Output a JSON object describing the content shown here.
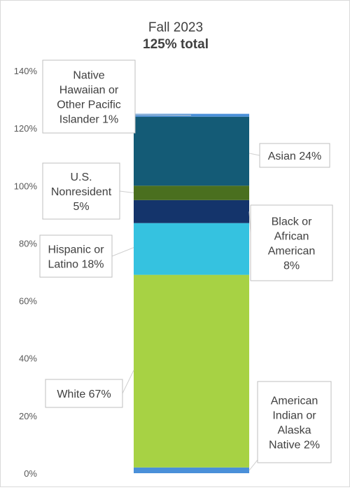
{
  "chart_data": {
    "type": "bar",
    "stacked": true,
    "title": "Fall 2023",
    "subtitle": "125% total",
    "xlabel": "",
    "ylabel": "",
    "ylim": [
      0,
      140
    ],
    "yticks": [
      0,
      20,
      40,
      60,
      80,
      100,
      120,
      140
    ],
    "ytick_labels": [
      "0%",
      "20%",
      "40%",
      "60%",
      "80%",
      "100%",
      "120%",
      "140%"
    ],
    "grid": false,
    "legend": "none",
    "series": [
      {
        "name": "American Indian or Alaska Native",
        "value": 2,
        "color": "#4a90d9",
        "label_lines": [
          "American",
          "Indian or",
          "Alaska",
          "Native 2%"
        ],
        "side": "right"
      },
      {
        "name": "White",
        "value": 67,
        "color": "#a7d244",
        "label_lines": [
          "White 67%"
        ],
        "side": "left"
      },
      {
        "name": "Hispanic or Latino",
        "value": 18,
        "color": "#35c2e0",
        "label_lines": [
          "Hispanic or",
          "Latino 18%"
        ],
        "side": "left"
      },
      {
        "name": "Black or African American",
        "value": 8,
        "color": "#14346b",
        "label_lines": [
          "Black or",
          "African",
          "American",
          "8%"
        ],
        "side": "right"
      },
      {
        "name": "U.S. Nonresident",
        "value": 5,
        "color": "#4a6f1f",
        "label_lines": [
          "U.S.",
          "Nonresident",
          "5%"
        ],
        "side": "left"
      },
      {
        "name": "Asian",
        "value": 24,
        "color": "#145b76",
        "label_lines": [
          "Asian 24%"
        ],
        "side": "right"
      },
      {
        "name": "Native Hawaiian or Other Pacific Islander",
        "value": 1,
        "color": "#4a90d9",
        "label_lines": [
          "Native",
          "Hawaiian or",
          "Other Pacific",
          "Islander 1%"
        ],
        "side": "left"
      }
    ]
  }
}
